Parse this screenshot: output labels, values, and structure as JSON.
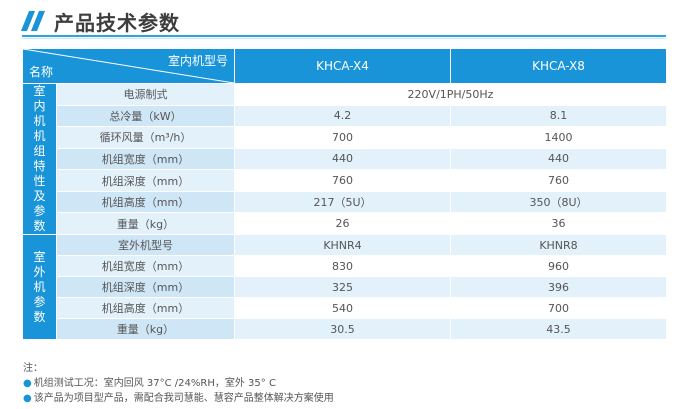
{
  "header": {
    "title": "产品技术参数",
    "icon": "double-slash-icon",
    "accent": "#1a94d8"
  },
  "table": {
    "corner_top": "室内机型号",
    "corner_bottom": "名称",
    "models": [
      "KHCA-X4",
      "KHCA-X8"
    ],
    "indoor_label": [
      "室",
      "内",
      "机",
      "机",
      "组",
      "特",
      "性",
      "及",
      "参",
      "数"
    ],
    "indoor_rows": [
      {
        "label": "电源制式",
        "span_value": "220V/1PH/50Hz"
      },
      {
        "label": "总冷量（kW）",
        "values": [
          "4.2",
          "8.1"
        ]
      },
      {
        "label": "循环风量（m³/h）",
        "values": [
          "700",
          "1400"
        ]
      },
      {
        "label": "机组宽度（mm）",
        "values": [
          "440",
          "440"
        ]
      },
      {
        "label": "机组深度（mm）",
        "values": [
          "760",
          "760"
        ]
      },
      {
        "label": "机组高度（mm）",
        "values": [
          "217（5U）",
          "350（8U）"
        ]
      },
      {
        "label": "重量（kg）",
        "values": [
          "26",
          "36"
        ]
      }
    ],
    "outdoor_label": [
      "室",
      "外",
      "机",
      "参",
      "数"
    ],
    "outdoor_rows": [
      {
        "label": "室外机型号",
        "values": [
          "KHNR4",
          "KHNR8"
        ]
      },
      {
        "label": "机组宽度（mm）",
        "values": [
          "830",
          "960"
        ]
      },
      {
        "label": "机组深度（mm）",
        "values": [
          "325",
          "396"
        ]
      },
      {
        "label": "机组高度（mm）",
        "values": [
          "540",
          "700"
        ]
      },
      {
        "label": "重量（kg）",
        "values": [
          "30.5",
          "43.5"
        ]
      }
    ]
  },
  "notes": {
    "heading": "注：",
    "items": [
      "机组测试工况：室内回风 37°C /24%RH，室外 35° C",
      "该产品为项目型产品，需配合我司慧能、慧容产品整体解决方案使用"
    ]
  }
}
